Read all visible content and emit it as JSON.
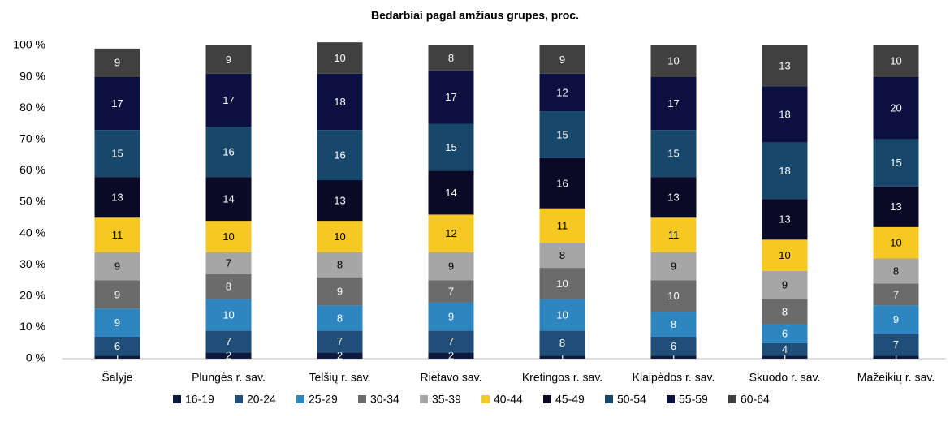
{
  "chart_data": {
    "type": "stacked_bar",
    "title": "Bedarbiai pagal amžiaus grupes, proc.",
    "categories": [
      "Šalyje",
      "Plungės r. sav.",
      "Telšių r. sav.",
      "Rietavo sav.",
      "Kretingos r. sav.",
      "Klaipėdos r. sav.",
      "Skuodo r. sav.",
      "Mažeikių r. sav."
    ],
    "series": [
      {
        "name": "16-19",
        "color": "#0d1b3e",
        "values": [
          1,
          2,
          2,
          2,
          1,
          1,
          1,
          1
        ]
      },
      {
        "name": "20-24",
        "color": "#1f4e79",
        "values": [
          6,
          7,
          7,
          7,
          8,
          6,
          4,
          7
        ]
      },
      {
        "name": "25-29",
        "color": "#2e86c1",
        "values": [
          9,
          10,
          8,
          9,
          10,
          8,
          6,
          9
        ]
      },
      {
        "name": "30-34",
        "color": "#6b6b6b",
        "values": [
          9,
          8,
          9,
          7,
          10,
          10,
          8,
          7
        ]
      },
      {
        "name": "35-39",
        "color": "#a6a6a6",
        "values": [
          9,
          7,
          8,
          9,
          8,
          9,
          9,
          8
        ]
      },
      {
        "name": "40-44",
        "color": "#f5c823",
        "values": [
          11,
          10,
          10,
          12,
          11,
          11,
          10,
          10
        ]
      },
      {
        "name": "45-49",
        "color": "#0a0a26",
        "values": [
          13,
          14,
          13,
          14,
          16,
          13,
          13,
          13
        ]
      },
      {
        "name": "50-54",
        "color": "#17476b",
        "values": [
          15,
          16,
          16,
          15,
          15,
          15,
          18,
          15
        ]
      },
      {
        "name": "55-59",
        "color": "#0b1040",
        "values": [
          17,
          17,
          18,
          17,
          12,
          17,
          18,
          20
        ]
      },
      {
        "name": "60-64",
        "color": "#404040",
        "values": [
          9,
          9,
          10,
          8,
          9,
          10,
          13,
          10
        ]
      }
    ],
    "ylim": [
      0,
      100
    ],
    "yticks": [
      {
        "value": 0,
        "label": "0 %"
      },
      {
        "value": 10,
        "label": "10 %"
      },
      {
        "value": 20,
        "label": "20 %"
      },
      {
        "value": 30,
        "label": "30 %"
      },
      {
        "value": 40,
        "label": "40 %"
      },
      {
        "value": 50,
        "label": "50 %"
      },
      {
        "value": 60,
        "label": "60 %"
      },
      {
        "value": 70,
        "label": "70 %"
      },
      {
        "value": 80,
        "label": "80 %"
      },
      {
        "value": 90,
        "label": "90 %"
      },
      {
        "value": 100,
        "label": "100 %"
      }
    ],
    "grid": false,
    "legend": "bottom"
  }
}
